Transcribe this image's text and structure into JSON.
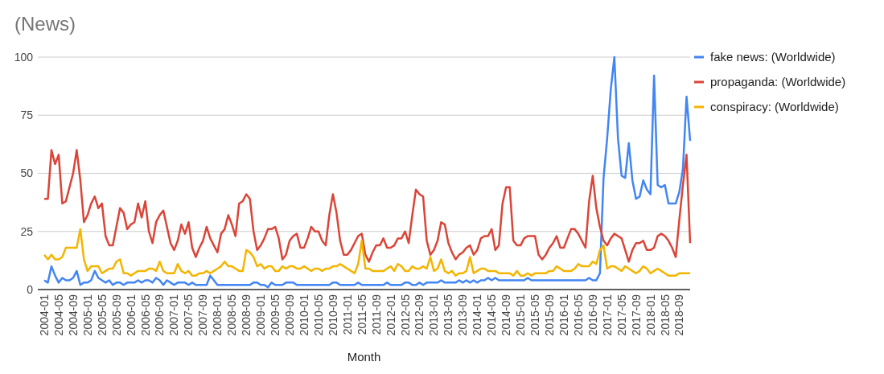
{
  "chart_data": {
    "type": "line",
    "title": "(News)",
    "xlabel": "Month",
    "ylim": [
      0,
      100
    ],
    "yticks": [
      0,
      25,
      50,
      75,
      100
    ],
    "grid": "y",
    "legend": "right",
    "marker": "none",
    "line_style": "solid",
    "categories": [
      "2004-01",
      null,
      null,
      null,
      "2004-05",
      null,
      null,
      null,
      "2004-09",
      null,
      null,
      null,
      "2005-01",
      null,
      null,
      null,
      "2005-05",
      null,
      null,
      null,
      "2005-09",
      null,
      null,
      null,
      "2006-01",
      null,
      null,
      null,
      "2006-05",
      null,
      null,
      null,
      "2006-09",
      null,
      null,
      null,
      "2007-01",
      null,
      null,
      null,
      "2007-05",
      null,
      null,
      null,
      "2007-09",
      null,
      null,
      null,
      "2008-01",
      null,
      null,
      null,
      "2008-05",
      null,
      null,
      null,
      "2008-09",
      null,
      null,
      null,
      "2009-01",
      null,
      null,
      null,
      "2009-05",
      null,
      null,
      null,
      "2009-09",
      null,
      null,
      null,
      "2010-01",
      null,
      null,
      null,
      "2010-05",
      null,
      null,
      null,
      "2010-09",
      null,
      null,
      null,
      "2011-01",
      null,
      null,
      null,
      "2011-05",
      null,
      null,
      null,
      "2011-09",
      null,
      null,
      null,
      "2012-01",
      null,
      null,
      null,
      "2012-05",
      null,
      null,
      null,
      "2012-09",
      null,
      null,
      null,
      "2013-01",
      null,
      null,
      null,
      "2013-05",
      null,
      null,
      null,
      "2013-09",
      null,
      null,
      null,
      "2014-01",
      null,
      null,
      null,
      "2014-05",
      null,
      null,
      null,
      "2014-09",
      null,
      null,
      null,
      "2015-01",
      null,
      null,
      null,
      "2015-05",
      null,
      null,
      null,
      "2015-09",
      null,
      null,
      null,
      "2016-01",
      null,
      null,
      null,
      "2016-05",
      null,
      null,
      null,
      "2016-09",
      null,
      null,
      null,
      "2017-01",
      null,
      null,
      null,
      "2017-05",
      null,
      null,
      null,
      "2017-09",
      null,
      null,
      null,
      "2018-01",
      null,
      null,
      null,
      "2018-05",
      null,
      null,
      null,
      "2018-09",
      null,
      null,
      null
    ],
    "series": [
      {
        "name": "fake news: (Worldwide)",
        "color": "#4285f4",
        "values": [
          4,
          3,
          10,
          6,
          3,
          5,
          4,
          4,
          5,
          8,
          2,
          3,
          3,
          4,
          8,
          5,
          4,
          3,
          4,
          2,
          3,
          3,
          2,
          3,
          3,
          3,
          4,
          3,
          4,
          4,
          3,
          5,
          4,
          2,
          4,
          3,
          2,
          3,
          3,
          3,
          2,
          3,
          2,
          2,
          2,
          2,
          6,
          4,
          2,
          2,
          2,
          2,
          2,
          2,
          2,
          2,
          2,
          2,
          3,
          3,
          2,
          2,
          1,
          3,
          2,
          2,
          2,
          3,
          3,
          3,
          2,
          2,
          2,
          2,
          2,
          2,
          2,
          2,
          2,
          2,
          3,
          3,
          2,
          2,
          2,
          2,
          2,
          3,
          2,
          2,
          2,
          2,
          2,
          2,
          2,
          3,
          2,
          2,
          2,
          2,
          3,
          3,
          2,
          2,
          3,
          2,
          3,
          3,
          3,
          3,
          4,
          3,
          3,
          3,
          3,
          4,
          3,
          4,
          3,
          4,
          3,
          4,
          4,
          5,
          4,
          5,
          4,
          4,
          4,
          4,
          4,
          4,
          4,
          4,
          5,
          4,
          4,
          4,
          4,
          4,
          4,
          4,
          4,
          4,
          4,
          4,
          4,
          4,
          4,
          4,
          4,
          5,
          4,
          4,
          7,
          48,
          65,
          86,
          100,
          65,
          49,
          48,
          63,
          47,
          39,
          40,
          47,
          43,
          41,
          92,
          45,
          44,
          45,
          37,
          37,
          37,
          42,
          52,
          83,
          64
        ]
      },
      {
        "name": "propaganda: (Worldwide)",
        "color": "#db4437",
        "values": [
          39,
          39,
          60,
          54,
          58,
          37,
          38,
          44,
          50,
          60,
          47,
          29,
          32,
          37,
          40,
          35,
          37,
          23,
          19,
          19,
          27,
          35,
          33,
          26,
          28,
          29,
          37,
          31,
          38,
          25,
          20,
          29,
          32,
          34,
          27,
          20,
          17,
          21,
          28,
          24,
          29,
          18,
          14,
          18,
          21,
          27,
          22,
          19,
          16,
          24,
          26,
          32,
          28,
          23,
          37,
          38,
          41,
          39,
          25,
          17,
          19,
          22,
          26,
          26,
          27,
          22,
          13,
          15,
          21,
          23,
          24,
          18,
          18,
          22,
          27,
          25,
          25,
          21,
          19,
          32,
          41,
          33,
          21,
          15,
          15,
          17,
          20,
          23,
          24,
          15,
          12,
          16,
          19,
          19,
          22,
          18,
          18,
          19,
          22,
          22,
          25,
          20,
          32,
          43,
          41,
          40,
          21,
          15,
          17,
          21,
          29,
          28,
          20,
          16,
          13,
          15,
          16,
          18,
          19,
          15,
          17,
          22,
          23,
          23,
          26,
          17,
          19,
          37,
          44,
          44,
          21,
          19,
          19,
          22,
          23,
          23,
          23,
          15,
          13,
          15,
          18,
          20,
          23,
          18,
          18,
          22,
          26,
          26,
          24,
          21,
          18,
          38,
          49,
          35,
          27,
          21,
          19,
          22,
          24,
          23,
          22,
          17,
          12,
          17,
          20,
          20,
          21,
          17,
          17,
          18,
          23,
          24,
          23,
          21,
          18,
          14,
          30,
          45,
          58,
          20
        ]
      },
      {
        "name": "conspiracy: (Worldwide)",
        "color": "#f4b400",
        "values": [
          15,
          13,
          15,
          13,
          13,
          14,
          18,
          18,
          18,
          18,
          26,
          13,
          8,
          10,
          10,
          10,
          7,
          8,
          9,
          9,
          12,
          13,
          7,
          7,
          6,
          7,
          8,
          8,
          8,
          9,
          9,
          8,
          12,
          8,
          7,
          7,
          7,
          11,
          8,
          7,
          8,
          6,
          6,
          7,
          7,
          8,
          7,
          8,
          9,
          10,
          12,
          10,
          10,
          9,
          8,
          8,
          17,
          16,
          14,
          10,
          11,
          9,
          10,
          10,
          8,
          8,
          10,
          9,
          10,
          10,
          9,
          9,
          10,
          9,
          8,
          9,
          9,
          8,
          9,
          9,
          10,
          10,
          11,
          10,
          9,
          8,
          7,
          11,
          21,
          9,
          9,
          8,
          8,
          8,
          8,
          9,
          10,
          8,
          11,
          10,
          8,
          8,
          10,
          9,
          9,
          10,
          9,
          14,
          8,
          9,
          13,
          8,
          7,
          8,
          6,
          7,
          7,
          8,
          14,
          7,
          8,
          9,
          9,
          8,
          8,
          8,
          7,
          7,
          7,
          7,
          6,
          8,
          6,
          6,
          7,
          6,
          7,
          7,
          7,
          7,
          8,
          8,
          10,
          9,
          8,
          8,
          8,
          9,
          11,
          10,
          10,
          10,
          12,
          11,
          17,
          19,
          9,
          10,
          10,
          9,
          8,
          10,
          9,
          8,
          7,
          8,
          10,
          9,
          7,
          8,
          9,
          8,
          7,
          6,
          6,
          6,
          7,
          7,
          7,
          7
        ]
      }
    ]
  }
}
